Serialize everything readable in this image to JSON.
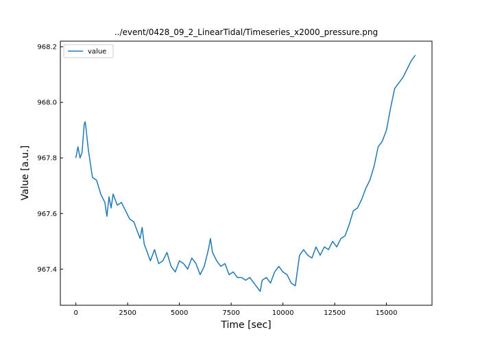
{
  "chart_data": {
    "type": "line",
    "title": "../event/0428_09_2_LinearTidal/Timeseries_x2000_pressure.png",
    "xlabel": "Time [sec]",
    "ylabel": "Value [a.u.]",
    "xlim": [
      -750,
      17200
    ],
    "ylim": [
      967.27,
      968.22
    ],
    "xticks": [
      0,
      2500,
      5000,
      7500,
      10000,
      12500,
      15000
    ],
    "xtick_labels": [
      "0",
      "2500",
      "5000",
      "7500",
      "10000",
      "12500",
      "15000"
    ],
    "yticks": [
      967.4,
      967.6,
      967.8,
      968.0,
      968.2
    ],
    "ytick_labels": [
      "967.4",
      "967.6",
      "967.8",
      "968.0",
      "968.2"
    ],
    "grid": false,
    "legend": {
      "position": "top-left",
      "entries": [
        "value"
      ]
    },
    "series": [
      {
        "name": "value",
        "color": "#1f77b4",
        "x": [
          0,
          100,
          200,
          300,
          400,
          450,
          500,
          600,
          700,
          800,
          1000,
          1200,
          1400,
          1500,
          1600,
          1700,
          1800,
          2000,
          2200,
          2400,
          2600,
          2800,
          3000,
          3100,
          3200,
          3300,
          3400,
          3600,
          3800,
          4000,
          4200,
          4400,
          4600,
          4800,
          5000,
          5200,
          5400,
          5600,
          5800,
          6000,
          6200,
          6400,
          6500,
          6600,
          6800,
          7000,
          7200,
          7400,
          7600,
          7800,
          8000,
          8200,
          8400,
          8600,
          8800,
          8900,
          9000,
          9200,
          9400,
          9600,
          9800,
          10000,
          10200,
          10400,
          10600,
          10800,
          11000,
          11200,
          11400,
          11600,
          11800,
          12000,
          12200,
          12400,
          12600,
          12800,
          13000,
          13200,
          13400,
          13600,
          13800,
          14000,
          14200,
          14400,
          14600,
          14800,
          15000,
          15200,
          15400,
          15600,
          15800,
          16000,
          16200,
          16400
        ],
        "y": [
          967.8,
          967.84,
          967.8,
          967.82,
          967.92,
          967.93,
          967.9,
          967.83,
          967.78,
          967.73,
          967.72,
          967.67,
          967.64,
          967.59,
          967.66,
          967.62,
          967.67,
          967.63,
          967.64,
          967.61,
          967.58,
          967.57,
          967.53,
          967.51,
          967.55,
          967.49,
          967.47,
          967.43,
          967.47,
          967.42,
          967.43,
          967.46,
          967.41,
          967.39,
          967.43,
          967.42,
          967.4,
          967.44,
          967.42,
          967.38,
          967.41,
          967.47,
          967.51,
          967.46,
          967.43,
          967.41,
          967.42,
          967.38,
          967.39,
          967.37,
          967.37,
          967.36,
          967.37,
          967.35,
          967.33,
          967.32,
          967.36,
          967.37,
          967.35,
          967.39,
          967.41,
          967.39,
          967.38,
          967.35,
          967.34,
          967.45,
          967.47,
          967.45,
          967.44,
          967.48,
          967.45,
          967.48,
          967.47,
          967.5,
          967.48,
          967.51,
          967.52,
          967.56,
          967.61,
          967.62,
          967.65,
          967.69,
          967.72,
          967.77,
          967.84,
          967.86,
          967.9,
          967.98,
          968.05,
          968.07,
          968.09,
          968.12,
          968.15,
          968.17
        ]
      }
    ]
  }
}
